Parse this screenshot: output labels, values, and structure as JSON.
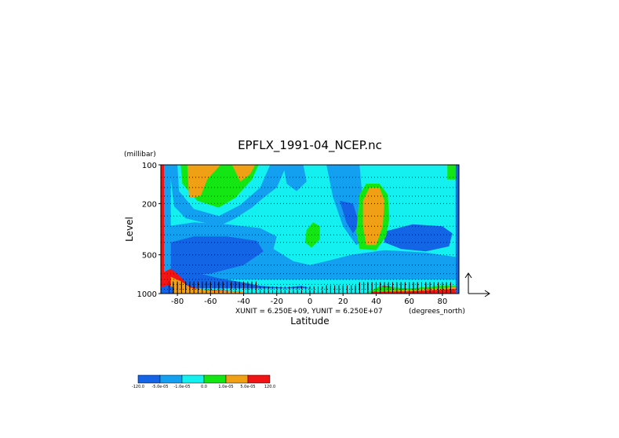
{
  "chart_data": {
    "type": "heatmap",
    "title": "EPFLX_1991-04_NCEP.nc",
    "xlabel": "Latitude",
    "x_units": "(degrees_north)",
    "ylabel": "Level",
    "y_units": "(millibar)",
    "xlim": [
      -90,
      90
    ],
    "ylim": [
      1000,
      100
    ],
    "y_scale": "log",
    "x_ticks": [
      -80,
      -60,
      -40,
      -20,
      0,
      20,
      40,
      60,
      80
    ],
    "y_ticks": [
      100,
      200,
      500,
      1000
    ],
    "vector_units": "XUNIT = 6.250E+09, YUNIT = 6.250E+07",
    "colorbar": {
      "labels": [
        "-120.0",
        "-5.0e-05",
        "-1.0e-05",
        "0.0",
        "1.0e-05",
        "5.0e-05",
        "120.0"
      ],
      "colors": [
        "#1464e6",
        "#14a0f0",
        "#14f0f0",
        "#14e614",
        "#f0a014",
        "#f01414"
      ]
    },
    "regions": [
      {
        "category": "cyan",
        "polygon": [
          [
            -90,
            100
          ],
          [
            90,
            100
          ],
          [
            90,
            1000
          ],
          [
            -90,
            1000
          ]
        ]
      },
      {
        "category": "mid-blue",
        "polygon": [
          [
            -85,
            100
          ],
          [
            -82,
            210
          ],
          [
            -75,
            260
          ],
          [
            -55,
            300
          ],
          [
            -45,
            260
          ],
          [
            -35,
            215
          ],
          [
            -28,
            180
          ],
          [
            -20,
            150
          ],
          [
            -14,
            100
          ]
        ]
      },
      {
        "category": "cyan",
        "polygon": [
          [
            -80,
            100
          ],
          [
            -79,
            160
          ],
          [
            -70,
            220
          ],
          [
            -55,
            250
          ],
          [
            -42,
            205
          ],
          [
            -30,
            150
          ],
          [
            -24,
            100
          ]
        ]
      },
      {
        "category": "green",
        "polygon": [
          [
            -78,
            100
          ],
          [
            -77,
            140
          ],
          [
            -68,
            190
          ],
          [
            -55,
            215
          ],
          [
            -45,
            180
          ],
          [
            -35,
            130
          ],
          [
            -31,
            100
          ]
        ]
      },
      {
        "category": "orange",
        "polygon": [
          [
            -74,
            100
          ],
          [
            -73,
            180
          ],
          [
            -66,
            175
          ],
          [
            -62,
            130
          ],
          [
            -54,
            100
          ]
        ]
      },
      {
        "category": "orange",
        "polygon": [
          [
            -47,
            100
          ],
          [
            -42,
            135
          ],
          [
            -36,
            118
          ],
          [
            -33,
            100
          ]
        ]
      },
      {
        "category": "mid-blue",
        "polygon": [
          [
            -16,
            100
          ],
          [
            -14,
            140
          ],
          [
            -8,
            160
          ],
          [
            -2,
            135
          ],
          [
            -4,
            100
          ]
        ]
      },
      {
        "category": "mid-blue",
        "polygon": [
          [
            -86,
            300
          ],
          [
            -70,
            280
          ],
          [
            -50,
            290
          ],
          [
            -30,
            310
          ],
          [
            -20,
            360
          ],
          [
            -22,
            450
          ],
          [
            -10,
            560
          ],
          [
            0,
            600
          ],
          [
            10,
            560
          ],
          [
            25,
            500
          ],
          [
            45,
            460
          ],
          [
            70,
            480
          ],
          [
            88,
            520
          ],
          [
            88,
            780
          ],
          [
            -86,
            780
          ]
        ]
      },
      {
        "category": "dark-blue",
        "polygon": [
          [
            -84,
            400
          ],
          [
            -70,
            360
          ],
          [
            -50,
            360
          ],
          [
            -32,
            390
          ],
          [
            -28,
            470
          ],
          [
            -40,
            600
          ],
          [
            -60,
            700
          ],
          [
            -84,
            720
          ]
        ]
      },
      {
        "category": "dark-blue",
        "polygon": [
          [
            -84,
            720
          ],
          [
            -70,
            680
          ],
          [
            -55,
            760
          ],
          [
            -40,
            820
          ],
          [
            -30,
            870
          ],
          [
            -15,
            900
          ],
          [
            -5,
            870
          ],
          [
            0,
            910
          ],
          [
            -84,
            910
          ]
        ]
      },
      {
        "category": "dark-blue",
        "polygon": [
          [
            45,
            330
          ],
          [
            62,
            290
          ],
          [
            80,
            300
          ],
          [
            86,
            340
          ],
          [
            84,
            430
          ],
          [
            70,
            470
          ],
          [
            55,
            450
          ],
          [
            45,
            400
          ]
        ]
      },
      {
        "category": "mid-blue",
        "polygon": [
          [
            10,
            100
          ],
          [
            14,
            180
          ],
          [
            20,
            300
          ],
          [
            28,
            420
          ],
          [
            36,
            360
          ],
          [
            32,
            200
          ],
          [
            30,
            100
          ]
        ]
      },
      {
        "category": "dark-blue",
        "polygon": [
          [
            18,
            190
          ],
          [
            22,
            280
          ],
          [
            26,
            340
          ],
          [
            30,
            290
          ],
          [
            26,
            200
          ]
        ]
      },
      {
        "category": "green",
        "polygon": [
          [
            -2,
            320
          ],
          [
            2,
            280
          ],
          [
            6,
            300
          ],
          [
            6,
            380
          ],
          [
            1,
            440
          ],
          [
            -3,
            400
          ]
        ]
      },
      {
        "category": "green",
        "polygon": [
          [
            30,
            170
          ],
          [
            34,
            140
          ],
          [
            42,
            140
          ],
          [
            47,
            170
          ],
          [
            48,
            260
          ],
          [
            46,
            360
          ],
          [
            40,
            460
          ],
          [
            30,
            450
          ],
          [
            28,
            330
          ]
        ]
      },
      {
        "category": "orange",
        "polygon": [
          [
            32,
            190
          ],
          [
            36,
            150
          ],
          [
            42,
            150
          ],
          [
            45,
            190
          ],
          [
            44,
            300
          ],
          [
            40,
            420
          ],
          [
            34,
            420
          ],
          [
            32,
            300
          ]
        ]
      },
      {
        "category": "mid-blue",
        "polygon": [
          [
            -88,
            100
          ],
          [
            -84,
            100
          ],
          [
            -84,
            1000
          ],
          [
            -88,
            1000
          ]
        ]
      },
      {
        "category": "green",
        "polygon": [
          [
            83,
            100
          ],
          [
            88,
            100
          ],
          [
            88,
            130
          ],
          [
            83,
            130
          ]
        ]
      },
      {
        "category": "red",
        "polygon": [
          [
            -90,
            100
          ],
          [
            -88,
            100
          ],
          [
            -88,
            1000
          ],
          [
            -90,
            1000
          ]
        ]
      },
      {
        "category": "dark-blue",
        "polygon": [
          [
            88,
            100
          ],
          [
            90,
            100
          ],
          [
            90,
            1000
          ],
          [
            88,
            1000
          ]
        ]
      },
      {
        "category": "red",
        "polygon": [
          [
            -88,
            680
          ],
          [
            -84,
            640
          ],
          [
            -78,
            740
          ],
          [
            -74,
            860
          ],
          [
            -66,
            930
          ],
          [
            -52,
            950
          ],
          [
            -40,
            970
          ],
          [
            -40,
            1000
          ],
          [
            -88,
            1000
          ]
        ]
      },
      {
        "category": "orange",
        "polygon": [
          [
            -84,
            740
          ],
          [
            -78,
            800
          ],
          [
            -72,
            900
          ],
          [
            -60,
            950
          ],
          [
            -40,
            965
          ],
          [
            -40,
            1000
          ],
          [
            -84,
            1000
          ]
        ]
      },
      {
        "category": "red",
        "polygon": [
          [
            36,
            1000
          ],
          [
            40,
            930
          ],
          [
            44,
            870
          ],
          [
            48,
            880
          ],
          [
            56,
            930
          ],
          [
            66,
            920
          ],
          [
            78,
            880
          ],
          [
            88,
            900
          ],
          [
            88,
            1000
          ]
        ]
      },
      {
        "category": "orange",
        "polygon": [
          [
            38,
            950
          ],
          [
            44,
            890
          ],
          [
            52,
            910
          ],
          [
            62,
            935
          ],
          [
            76,
            900
          ],
          [
            88,
            880
          ],
          [
            88,
            920
          ],
          [
            60,
            960
          ],
          [
            40,
            970
          ]
        ]
      },
      {
        "category": "green",
        "polygon": [
          [
            34,
            990
          ],
          [
            42,
            880
          ],
          [
            50,
            900
          ],
          [
            62,
            910
          ],
          [
            78,
            870
          ],
          [
            88,
            870
          ],
          [
            88,
            890
          ],
          [
            60,
            940
          ],
          [
            40,
            960
          ]
        ]
      },
      {
        "category": "dark-blue",
        "polygon": [
          [
            -90,
            1000
          ],
          [
            -82,
            1000
          ],
          [
            -82,
            900
          ],
          [
            -86,
            860
          ],
          [
            -90,
            900
          ]
        ]
      }
    ]
  }
}
